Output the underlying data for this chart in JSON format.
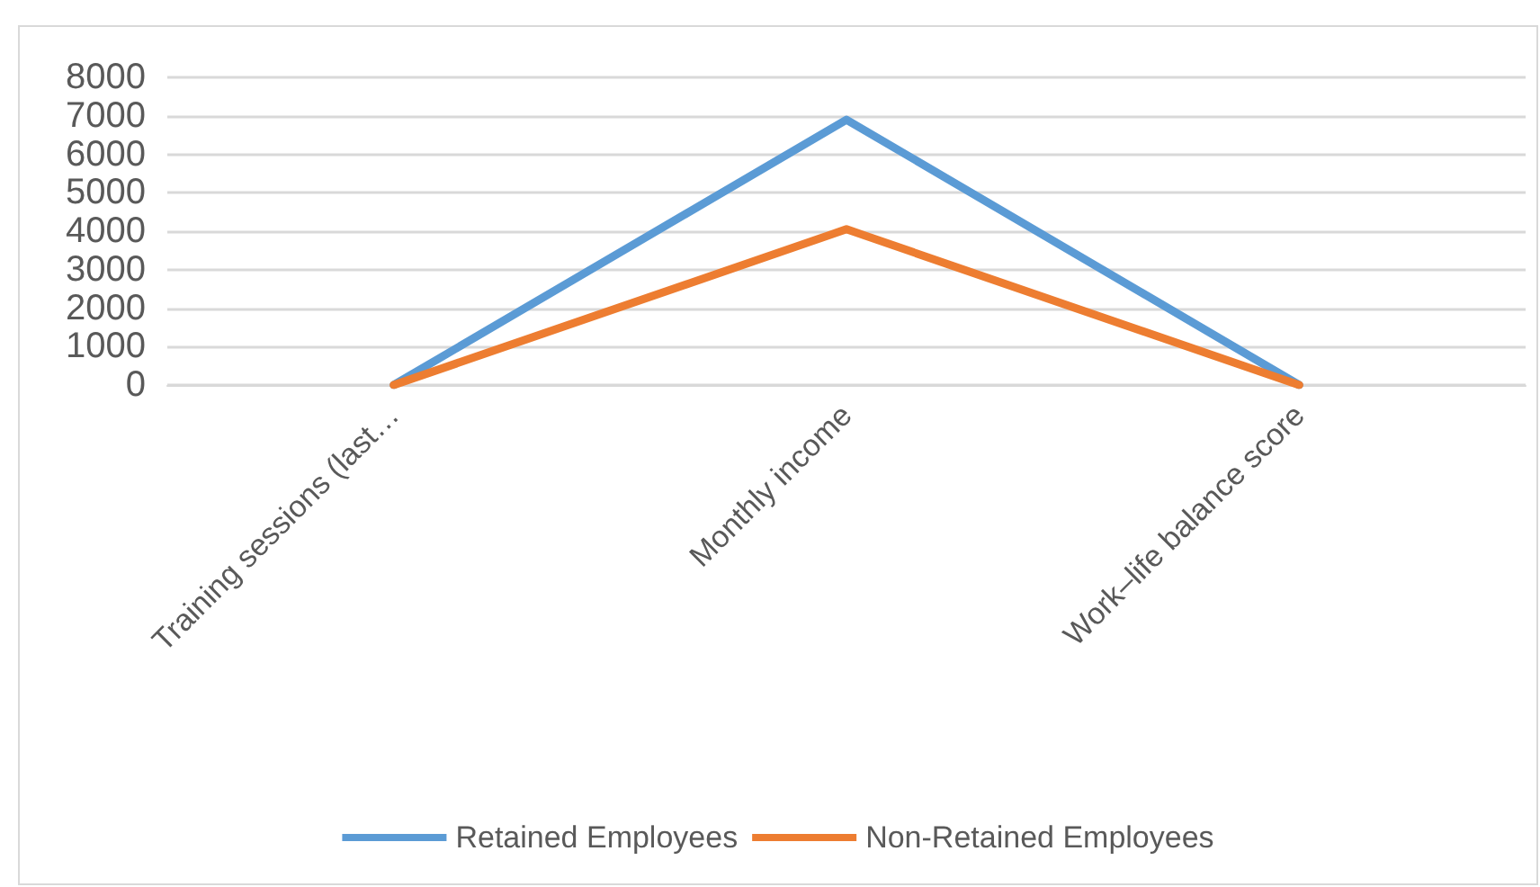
{
  "chart_data": {
    "type": "line",
    "categories": [
      "Training sessions (last…",
      "Monthly income",
      "Work–life balance score"
    ],
    "series": [
      {
        "name": "Retained Employees",
        "color": "#5b9bd5",
        "values": [
          0,
          6900,
          0
        ]
      },
      {
        "name": "Non-Retained Employees",
        "color": "#ed7d31",
        "values": [
          0,
          4050,
          0
        ]
      }
    ],
    "ylim": [
      0,
      8000
    ],
    "yticks": [
      0,
      1000,
      2000,
      3000,
      4000,
      5000,
      6000,
      7000,
      8000
    ],
    "grid": "y",
    "legend": "bottom",
    "marker": "none",
    "line_style": "solid"
  }
}
